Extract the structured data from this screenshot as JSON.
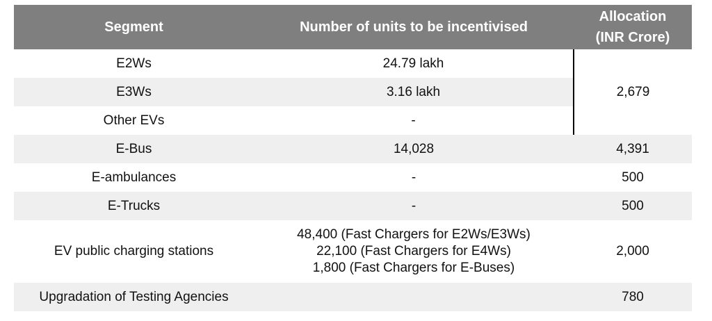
{
  "table": {
    "headers": [
      "Segment",
      "Number of units to be incentivised",
      "Allocation (INR Crore)"
    ],
    "header_allocation_lines": [
      "Allocation",
      "(INR Crore)"
    ],
    "rows": [
      {
        "segment": "E2Ws",
        "units": "24.79 lakh",
        "allocation": "2,679"
      },
      {
        "segment": "E3Ws",
        "units": "3.16 lakh",
        "allocation": ""
      },
      {
        "segment": "Other EVs",
        "units": "-",
        "allocation": ""
      },
      {
        "segment": "E-Bus",
        "units": "14,028",
        "allocation": "4,391"
      },
      {
        "segment": "E-ambulances",
        "units": "-",
        "allocation": "500"
      },
      {
        "segment": "E-Trucks",
        "units": "-",
        "allocation": "500"
      },
      {
        "segment": "EV public charging stations",
        "units_lines": [
          "48,400 (Fast Chargers for E2Ws/E3Ws)",
          "22,100 (Fast Chargers for E4Ws)",
          "1,800 (Fast Chargers for E-Buses)"
        ],
        "allocation": "2,000"
      },
      {
        "segment": "Upgradation of Testing Agencies",
        "units": "",
        "allocation": "780"
      }
    ]
  },
  "colors": {
    "header_bg": "#7f7f7f",
    "header_text": "#ffffff",
    "stripe_bg": "#efefef",
    "row_bg": "#ffffff"
  }
}
